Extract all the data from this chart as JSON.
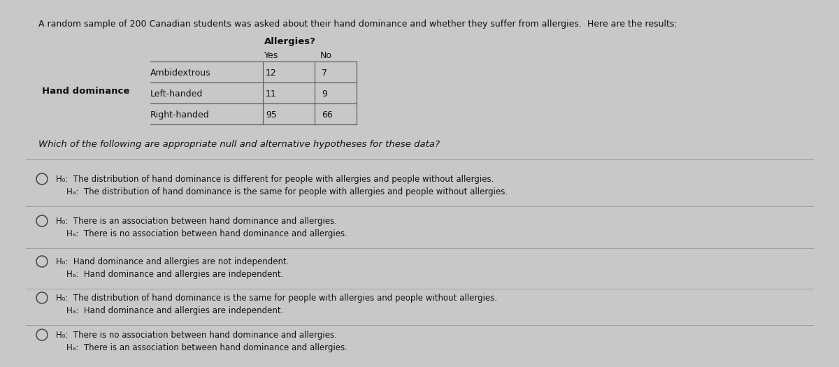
{
  "bg_color": "#c8c8c8",
  "card_color": "#eeeded",
  "title": "A random sample of 200 Canadian students was asked about their hand dominance and whether they suffer from allergies.  Here are the results:",
  "table_header": "Allergies?",
  "col_headers": [
    "Yes",
    "No"
  ],
  "row_label": "Hand dominance",
  "rows": [
    "Ambidextrous",
    "Left-handed",
    "Right-handed"
  ],
  "values": [
    [
      12,
      7
    ],
    [
      11,
      9
    ],
    [
      95,
      66
    ]
  ],
  "question": "Which of the following are appropriate null and alternative hypotheses for these data?",
  "options": [
    {
      "h0": "H₀:  The distribution of hand dominance is different for people with allergies and people without allergies.",
      "ha": "Hₐ:  The distribution of hand dominance is the same for people with allergies and people without allergies."
    },
    {
      "h0": "H₀:  There is an association between hand dominance and allergies.",
      "ha": "Hₐ:  There is no association between hand dominance and allergies."
    },
    {
      "h0": "H₀:  Hand dominance and allergies are not independent.",
      "ha": "Hₐ:  Hand dominance and allergies are independent."
    },
    {
      "h0": "H₀:  The distribution of hand dominance is the same for people with allergies and people without allergies.",
      "ha": "Hₐ:  Hand dominance and allergies are independent."
    },
    {
      "h0": "H₀:  There is no association between hand dominance and allergies.",
      "ha": "Hₐ:  There is an association between hand dominance and allergies."
    }
  ],
  "fig_width": 12.0,
  "fig_height": 5.25,
  "dpi": 100
}
